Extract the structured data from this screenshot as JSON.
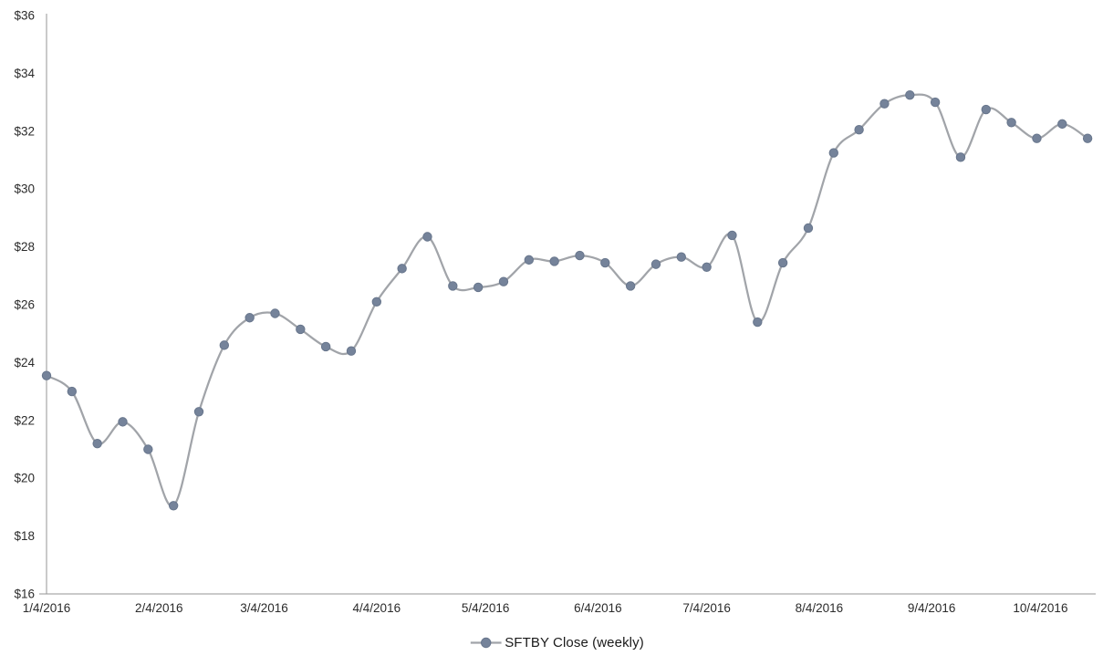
{
  "page": {
    "background": "#FFFFFF"
  },
  "legend": {
    "label": "SFTBY Close (weekly)"
  },
  "chart_data": {
    "type": "line",
    "title": "",
    "smooth": true,
    "marker": "circle",
    "grid": false,
    "legend_position": "bottom-center",
    "ylim": [
      16,
      36
    ],
    "y_tick_step": 2,
    "y_tick_labels": [
      "$16",
      "$18",
      "$20",
      "$22",
      "$24",
      "$26",
      "$28",
      "$30",
      "$32",
      "$34",
      "$36"
    ],
    "x_tick_labels": [
      "1/4/2016",
      "2/4/2016",
      "3/4/2016",
      "4/4/2016",
      "5/4/2016",
      "6/4/2016",
      "7/4/2016",
      "8/4/2016",
      "9/4/2016",
      "10/4/2016"
    ],
    "series": [
      {
        "name": "SFTBY Close (weekly)",
        "x": [
          "1/4/2016",
          "1/11/2016",
          "1/18/2016",
          "1/25/2016",
          "2/1/2016",
          "2/8/2016",
          "2/15/2016",
          "2/22/2016",
          "2/29/2016",
          "3/7/2016",
          "3/14/2016",
          "3/21/2016",
          "3/28/2016",
          "4/4/2016",
          "4/11/2016",
          "4/18/2016",
          "4/25/2016",
          "5/2/2016",
          "5/9/2016",
          "5/16/2016",
          "5/23/2016",
          "5/30/2016",
          "6/6/2016",
          "6/13/2016",
          "6/20/2016",
          "6/27/2016",
          "7/4/2016",
          "7/11/2016",
          "7/18/2016",
          "7/25/2016",
          "8/1/2016",
          "8/8/2016",
          "8/15/2016",
          "8/22/2016",
          "8/29/2016",
          "9/5/2016",
          "9/12/2016",
          "9/19/2016",
          "9/26/2016",
          "10/3/2016",
          "10/10/2016",
          "10/17/2016"
        ],
        "values": [
          23.55,
          23.0,
          21.2,
          21.95,
          21.0,
          19.05,
          22.3,
          24.6,
          25.55,
          25.7,
          25.15,
          24.55,
          24.4,
          26.1,
          27.25,
          28.35,
          26.65,
          26.6,
          26.8,
          27.55,
          27.5,
          27.7,
          27.45,
          26.65,
          27.4,
          27.65,
          27.3,
          28.4,
          25.4,
          27.45,
          28.65,
          31.25,
          32.05,
          32.95,
          33.25,
          33.0,
          31.1,
          32.75,
          32.3,
          31.75,
          32.25,
          31.75
        ]
      }
    ],
    "colors": {
      "line": "#A1A4A9",
      "marker_fill": "#75839A",
      "marker_border": "#68768C",
      "axis": "#969696",
      "tick_label": "#2B2B2B",
      "legend_text": "#1A1A1A"
    }
  }
}
